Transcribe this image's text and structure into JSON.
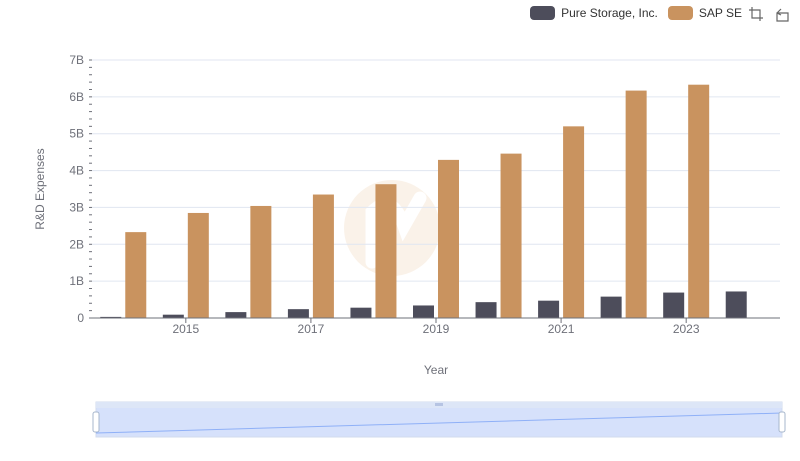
{
  "colors": {
    "pure_storage": "#4d4d5b",
    "sap": "#c9935f",
    "axis": "#6e7079",
    "grid": "#e0e6f1",
    "slider_fill": "#d6e1fb",
    "slider_line": "#8fb0f7",
    "slider_border": "#d2dbee"
  },
  "toolbar": {
    "zoom_icon": "data-zoom-icon",
    "reset_icon": "data-zoom-reset-icon"
  },
  "chart_data": {
    "type": "bar",
    "title": "",
    "xlabel": "Year",
    "ylabel": "R&D Expenses",
    "ylim": [
      0,
      7000000000
    ],
    "yticks": [
      0,
      1000000000,
      2000000000,
      3000000000,
      4000000000,
      5000000000,
      6000000000,
      7000000000
    ],
    "ytick_labels": [
      "0",
      "1B",
      "2B",
      "3B",
      "4B",
      "5B",
      "6B",
      "7B"
    ],
    "categories": [
      "2014",
      "2015",
      "2016",
      "2017",
      "2018",
      "2019",
      "2020",
      "2021",
      "2022",
      "2023",
      "2024"
    ],
    "xtick_labels_shown": [
      "2015",
      "2017",
      "2019",
      "2021",
      "2023"
    ],
    "legend_position": "top-right",
    "grid": true,
    "series": [
      {
        "name": "Pure Storage, Inc.",
        "color": "#4d4d5b",
        "values": [
          30000000,
          90000000,
          160000000,
          240000000,
          280000000,
          340000000,
          430000000,
          470000000,
          580000000,
          690000000,
          720000000
        ]
      },
      {
        "name": "SAP SE",
        "color": "#c9935f",
        "values": [
          2330000000,
          2850000000,
          3040000000,
          3350000000,
          3630000000,
          4290000000,
          4460000000,
          5200000000,
          6170000000,
          6330000000,
          null
        ]
      }
    ]
  }
}
